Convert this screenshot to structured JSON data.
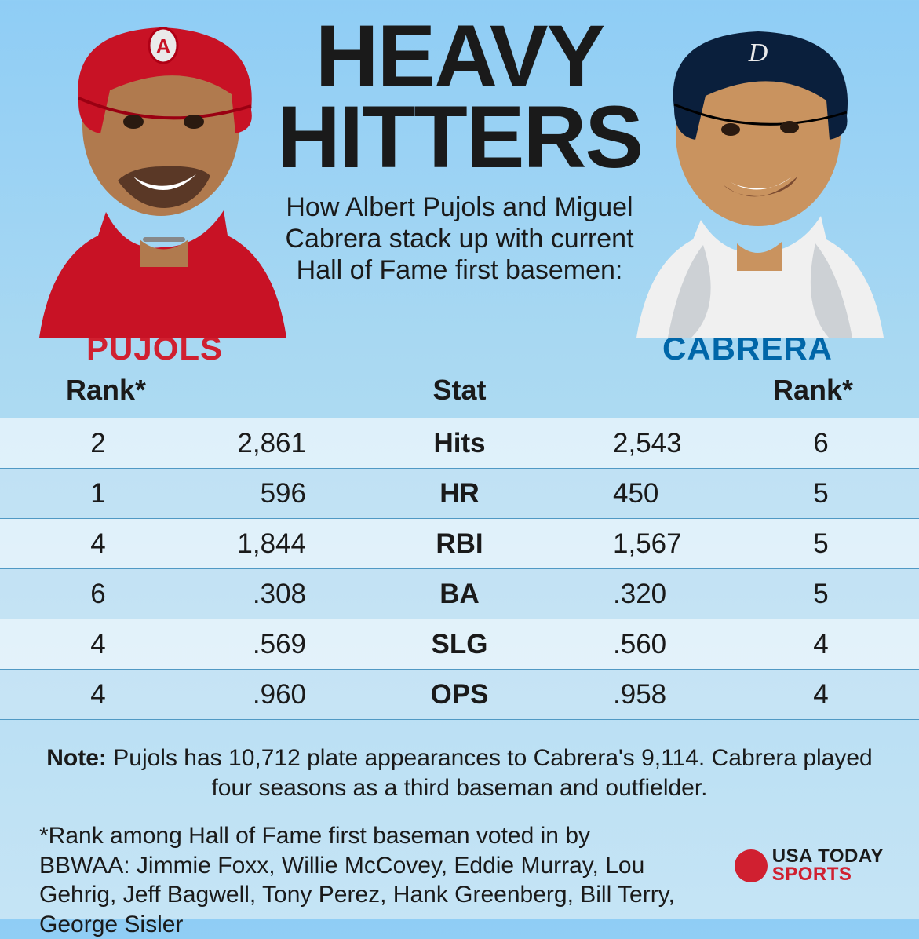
{
  "title_line1": "HEAVY",
  "title_line2": "HITTERS",
  "subtitle": "How Albert Pujols and Miguel Cabrera stack up with current Hall of Fame first basemen:",
  "player_left": {
    "name": "PUJOLS",
    "name_color": "#d02030",
    "helmet_color": "#c81225",
    "jersey_color": "#c81225",
    "skin": "#b07a4e",
    "cap_logo": "A"
  },
  "player_right": {
    "name": "CABRERA",
    "name_color": "#0066a8",
    "helmet_color": "#0a1f3c",
    "jersey_color": "#f0f0f0",
    "skin": "#c9935f",
    "cap_logo": "D"
  },
  "header_rank": "Rank*",
  "header_stat": "Stat",
  "table": {
    "row_colors": {
      "alt": "rgba(255,255,255,0.6)",
      "nor": "rgba(210,232,246,0.5)"
    },
    "border_color": "#5099c4",
    "font_size": 35,
    "rows": [
      {
        "rank_l": "2",
        "val_l": "2,861",
        "stat": "Hits",
        "val_r": "2,543",
        "rank_r": "6"
      },
      {
        "rank_l": "1",
        "val_l": "596",
        "stat": "HR",
        "val_r": "450",
        "rank_r": "5"
      },
      {
        "rank_l": "4",
        "val_l": "1,844",
        "stat": "RBI",
        "val_r": "1,567",
        "rank_r": "5"
      },
      {
        "rank_l": "6",
        "val_l": ".308",
        "stat": "BA",
        "val_r": ".320",
        "rank_r": "5"
      },
      {
        "rank_l": "4",
        "val_l": ".569",
        "stat": "SLG",
        "val_r": ".560",
        "rank_r": "4"
      },
      {
        "rank_l": "4",
        "val_l": ".960",
        "stat": "OPS",
        "val_r": ".958",
        "rank_r": "4"
      }
    ]
  },
  "note_label": "Note:",
  "note_text": " Pujols has 10,712 plate appearances to Cabrera's 9,114. Cabrera played four seasons as a third baseman and outfielder.",
  "footnote": "*Rank among Hall of Fame first baseman voted in by BBWAA: Jimmie Foxx, Willie McCovey, Eddie Murray, Lou Gehrig, Jeff Bagwell, Tony Perez, Hank Greenberg, Bill Terry, George Sisler",
  "logo": {
    "line1": "USA TODAY",
    "line2": "SPORTS",
    "dot_color": "#d02030"
  },
  "background_gradient": [
    "#8fcdf5",
    "#aad9f2",
    "#c5e4f5"
  ]
}
